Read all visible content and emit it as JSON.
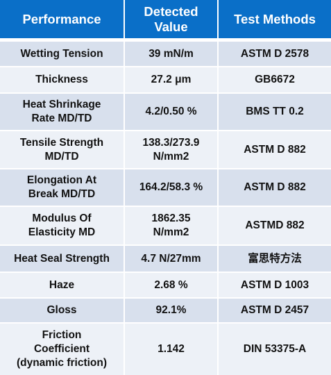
{
  "table": {
    "header": [
      "Performance",
      "Detected\nValue",
      "Test Methods"
    ],
    "rows": [
      [
        "Wetting Tension",
        "39 mN/m",
        "ASTM D 2578"
      ],
      [
        "Thickness",
        "27.2 μm",
        "GB6672"
      ],
      [
        "Heat Shrinkage\nRate MD/TD",
        "4.2/0.50 %",
        "BMS TT 0.2"
      ],
      [
        "Tensile Strength\nMD/TD",
        "138.3/273.9\nN/mm2",
        "ASTM D 882"
      ],
      [
        "Elongation At\nBreak MD/TD",
        "164.2/58.3 %",
        "ASTM D 882"
      ],
      [
        "Modulus Of\nElasticity MD",
        "1862.35\nN/mm2",
        "ASTMD 882"
      ],
      [
        "Heat Seal Strength",
        "4.7 N/27mm",
        "富思特方法"
      ],
      [
        "Haze",
        "2.68 %",
        "ASTM D 1003"
      ],
      [
        "Gloss",
        "92.1%",
        "ASTM D 2457"
      ],
      [
        "Friction\nCoefficient\n(dynamic friction)",
        "1.142",
        "DIN 53375-A"
      ]
    ]
  }
}
